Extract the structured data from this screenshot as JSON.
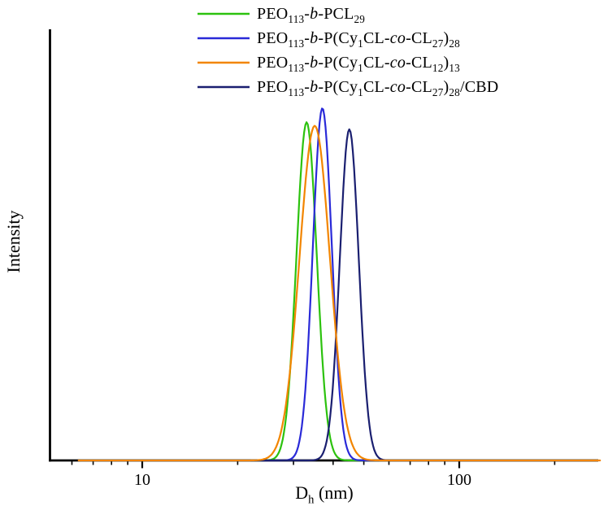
{
  "chart_data": {
    "type": "line",
    "title": "",
    "xlabel": "Dh (nm)",
    "xlabel_rich": [
      {
        "t": "D"
      },
      {
        "t": "h",
        "sub": true
      },
      {
        "t": " (nm)"
      }
    ],
    "ylabel": "Intensity",
    "x_scale": "log",
    "grid": false,
    "legend_position": "top-center",
    "colors": {
      "axis": "#000000",
      "background": "#ffffff"
    },
    "x_axis": {
      "major_ticks": [
        10,
        100
      ],
      "major_tick_labels": [
        "10",
        "100"
      ],
      "minor_ticks": [
        6,
        7,
        8,
        9,
        20,
        30,
        40,
        50,
        60,
        70,
        80,
        90,
        200
      ],
      "range_nm": [
        5.1,
        280
      ]
    },
    "y_axis": {
      "tick_labels": [],
      "range_relative": [
        0,
        1.1
      ]
    },
    "series": [
      {
        "name": "PEO113-b-PCL29",
        "name_rich": [
          {
            "t": "PEO"
          },
          {
            "t": "113",
            "sub": true
          },
          {
            "t": "-"
          },
          {
            "t": "b",
            "i": true
          },
          {
            "t": "-PCL"
          },
          {
            "t": "29",
            "sub": true
          }
        ],
        "color": "#2cc20e",
        "peak_dh_nm": 33,
        "rel_intensity": 0.96,
        "sigma_log10": 0.032,
        "x_start_nm": 6.4,
        "x_end_nm": 240,
        "z": 1
      },
      {
        "name": "PEO113-b-P(Cy1CL-co-CL27)28",
        "name_rich": [
          {
            "t": "PEO"
          },
          {
            "t": "113",
            "sub": true
          },
          {
            "t": "-"
          },
          {
            "t": "b",
            "i": true
          },
          {
            "t": "-P(Cy"
          },
          {
            "t": "1",
            "sub": true
          },
          {
            "t": "CL-"
          },
          {
            "t": "co",
            "i": true
          },
          {
            "t": "-CL"
          },
          {
            "t": "27",
            "sub": true
          },
          {
            "t": ")"
          },
          {
            "t": "28",
            "sub": true
          }
        ],
        "color": "#2a2ad8",
        "peak_dh_nm": 37,
        "rel_intensity": 1.0,
        "sigma_log10": 0.03,
        "x_start_nm": 6.4,
        "x_end_nm": 240,
        "z": 2
      },
      {
        "name": "PEO113-b-P(Cy1CL-co-CL12)13",
        "name_rich": [
          {
            "t": "PEO"
          },
          {
            "t": "113",
            "sub": true
          },
          {
            "t": "-"
          },
          {
            "t": "b",
            "i": true
          },
          {
            "t": "-P(Cy"
          },
          {
            "t": "1",
            "sub": true
          },
          {
            "t": "CL-"
          },
          {
            "t": "co",
            "i": true
          },
          {
            "t": "-CL"
          },
          {
            "t": "12",
            "sub": true
          },
          {
            "t": ")"
          },
          {
            "t": "13",
            "sub": true
          }
        ],
        "color": "#f28500",
        "peak_dh_nm": 35,
        "rel_intensity": 0.95,
        "sigma_log10": 0.048,
        "x_start_nm": 6.3,
        "x_end_nm": 278,
        "z": 4
      },
      {
        "name": "PEO113-b-P(Cy1CL-co-CL27)28/CBD",
        "name_rich": [
          {
            "t": "PEO"
          },
          {
            "t": "113",
            "sub": true
          },
          {
            "t": "-"
          },
          {
            "t": "b",
            "i": true
          },
          {
            "t": "-P(Cy"
          },
          {
            "t": "1",
            "sub": true
          },
          {
            "t": "CL-"
          },
          {
            "t": "co",
            "i": true
          },
          {
            "t": "-CL"
          },
          {
            "t": "27",
            "sub": true
          },
          {
            "t": ")"
          },
          {
            "t": "28",
            "sub": true
          },
          {
            "t": "/CBD"
          }
        ],
        "color": "#1a1f70",
        "peak_dh_nm": 45,
        "rel_intensity": 0.94,
        "sigma_log10": 0.03,
        "x_start_nm": 6.4,
        "x_end_nm": 240,
        "z": 3
      }
    ]
  }
}
